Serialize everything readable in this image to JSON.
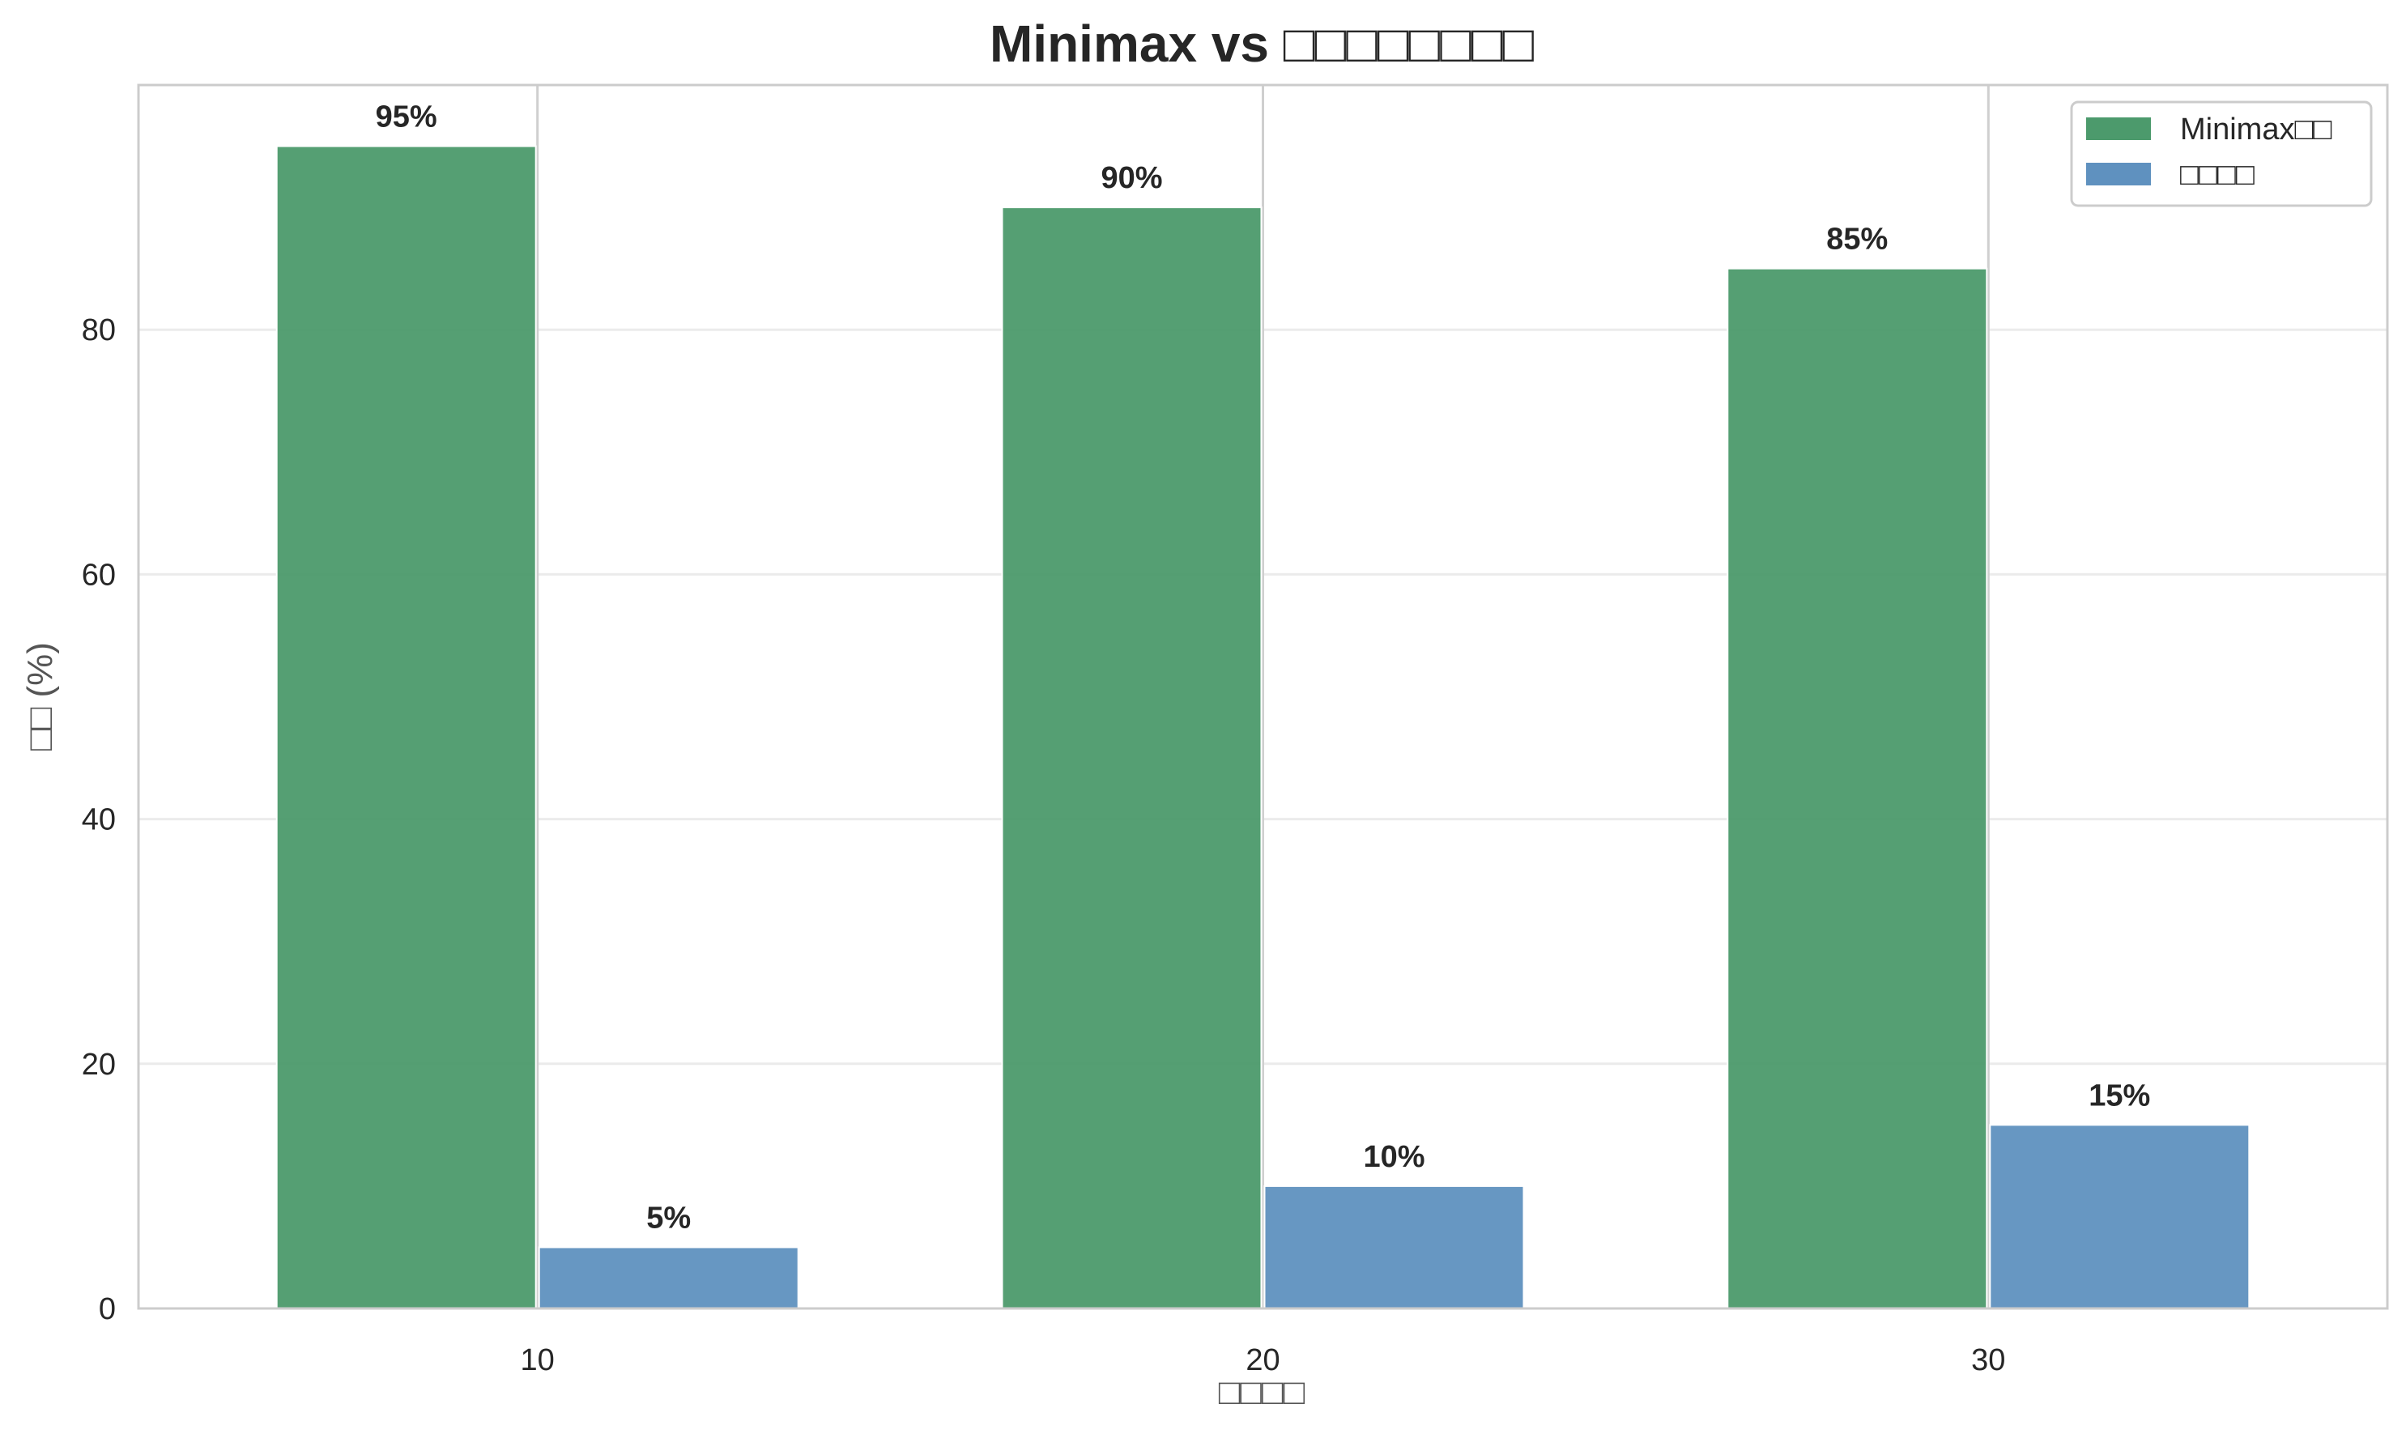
{
  "chart_data": {
    "type": "bar",
    "title": "Minimax vs □□□□□□□□",
    "xlabel": "□□□□",
    "ylabel": "□□ (%)",
    "categories": [
      "10",
      "20",
      "30"
    ],
    "ylim": [
      0,
      100
    ],
    "yticks": [
      "0",
      "20",
      "40",
      "60",
      "80"
    ],
    "grid": true,
    "legend_position": "top-right",
    "series": [
      {
        "name": "Minimax□□",
        "values": [
          95,
          90,
          85
        ],
        "labels": [
          "95%",
          "90%",
          "85%"
        ],
        "color": "#4c9a6c"
      },
      {
        "name": "□□□□",
        "values": [
          5,
          10,
          15
        ],
        "labels": [
          "5%",
          "10%",
          "15%"
        ],
        "color": "#5f91bf"
      }
    ]
  }
}
